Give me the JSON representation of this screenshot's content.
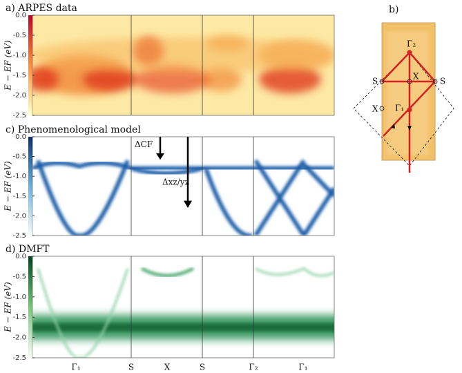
{
  "chart_data": [
    {
      "type": "heatmap",
      "title": "a)  ARPES data",
      "ylabel": "E − EF (eV)",
      "colormap": "YlOrRd",
      "ylim": [
        -2.5,
        0
      ],
      "yticks": [
        {
          "value": 0,
          "label": "0.0"
        },
        -0.5,
        {
          "value": -1,
          "label": "-1.0"
        },
        -1.5,
        {
          "value": -2,
          "label": "-2.0"
        },
        -2.5
      ]
    },
    {
      "type": "heatmap",
      "title": "c)  Phenomenological model",
      "ylabel": "E − EF (eV)",
      "colormap": "Blues",
      "ylim": [
        -2.5,
        0
      ],
      "yticks": [
        {
          "value": 0,
          "label": "0.0"
        },
        -0.5,
        {
          "value": -1,
          "label": "-1.0"
        },
        -1.5,
        {
          "value": -2,
          "label": "-2.0"
        },
        -2.5
      ],
      "annotations": [
        "ΔCF",
        "Δxz/yz"
      ]
    },
    {
      "type": "heatmap",
      "title": "d)  DMFT",
      "ylabel": "E − EF (eV)",
      "colormap": "Greens",
      "ylim": [
        -2.5,
        0
      ],
      "yticks": [
        {
          "value": 0,
          "label": "0.0"
        },
        -0.5,
        {
          "value": -1,
          "label": "-1.0"
        },
        -1.5,
        {
          "value": -2,
          "label": "-2.0"
        },
        -2.5
      ],
      "categories": [
        "Γ₁",
        "S",
        "X",
        "S",
        "Γ₂",
        "Γ₁"
      ]
    }
  ],
  "diagram": {
    "title": "b)",
    "labels": [
      "Γ₂",
      "X",
      "S",
      "S",
      "X",
      "Γ₁"
    ]
  }
}
